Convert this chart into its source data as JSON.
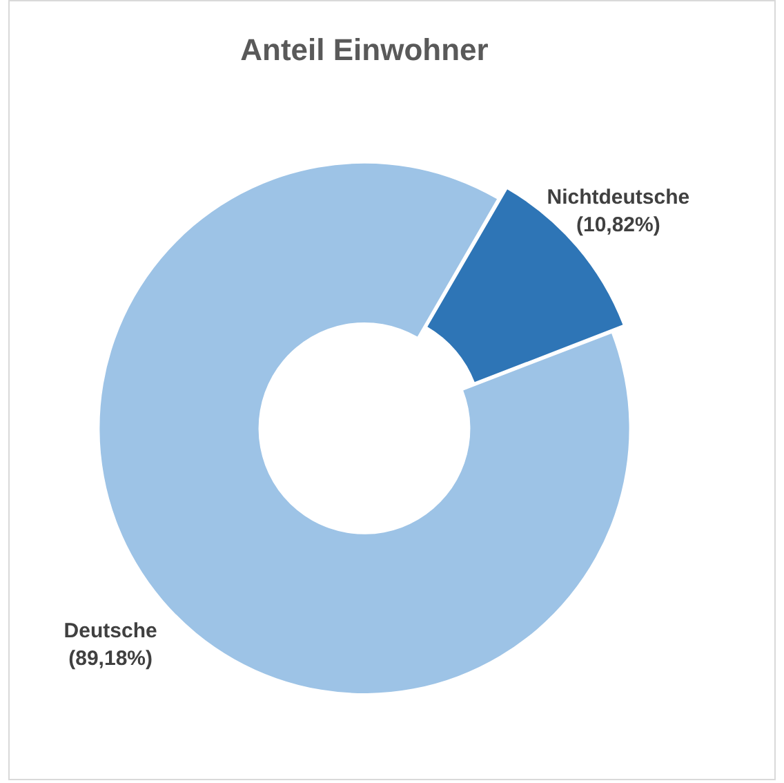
{
  "chart_data": {
    "type": "donut",
    "title": "Anteil Einwohner",
    "categories": [
      "Deutsche",
      "Nichtdeutsche"
    ],
    "values": [
      89.18,
      10.82
    ],
    "value_labels": [
      "(89,18%)",
      "(10,82%)"
    ],
    "colors": [
      "#9dc3e6",
      "#2e75b6"
    ],
    "legend": false
  }
}
